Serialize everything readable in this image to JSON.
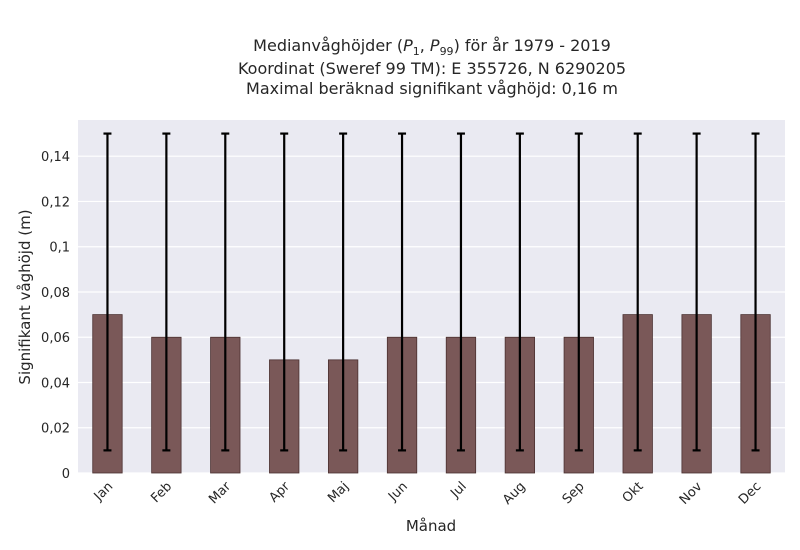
{
  "chart_data": {
    "type": "bar",
    "title_lines": [
      "Medianvåghöjder (P1, P99) för år 1979 - 2019",
      "Koordinat (Sweref 99 TM): E 355726, N 6290205",
      "Maximal beräknad signifikant våghöjd: 0,16 m"
    ],
    "xlabel": "Månad",
    "ylabel": "Signifikant våghöjd (m)",
    "categories": [
      "Jan",
      "Feb",
      "Mar",
      "Apr",
      "Maj",
      "Jun",
      "Jul",
      "Aug",
      "Sep",
      "Okt",
      "Nov",
      "Dec"
    ],
    "values": [
      0.07,
      0.06,
      0.06,
      0.05,
      0.05,
      0.06,
      0.06,
      0.06,
      0.06,
      0.07,
      0.07,
      0.07
    ],
    "error_low": [
      0.01,
      0.01,
      0.01,
      0.01,
      0.01,
      0.01,
      0.01,
      0.01,
      0.01,
      0.01,
      0.01,
      0.01
    ],
    "error_high": [
      0.15,
      0.15,
      0.15,
      0.15,
      0.15,
      0.15,
      0.15,
      0.15,
      0.15,
      0.15,
      0.15,
      0.15
    ],
    "ylim": [
      0,
      0.156
    ],
    "yticks": [
      0,
      0.02,
      0.04,
      0.06,
      0.08,
      0.1,
      0.12,
      0.14
    ],
    "ytick_labels": [
      "0",
      "0,02",
      "0,04",
      "0,06",
      "0,08",
      "0,1",
      "0,12",
      "0,14"
    ],
    "grid": true,
    "colors": {
      "bar": "#7a5858",
      "background": "#eaeaf2",
      "error": "#000000"
    }
  }
}
